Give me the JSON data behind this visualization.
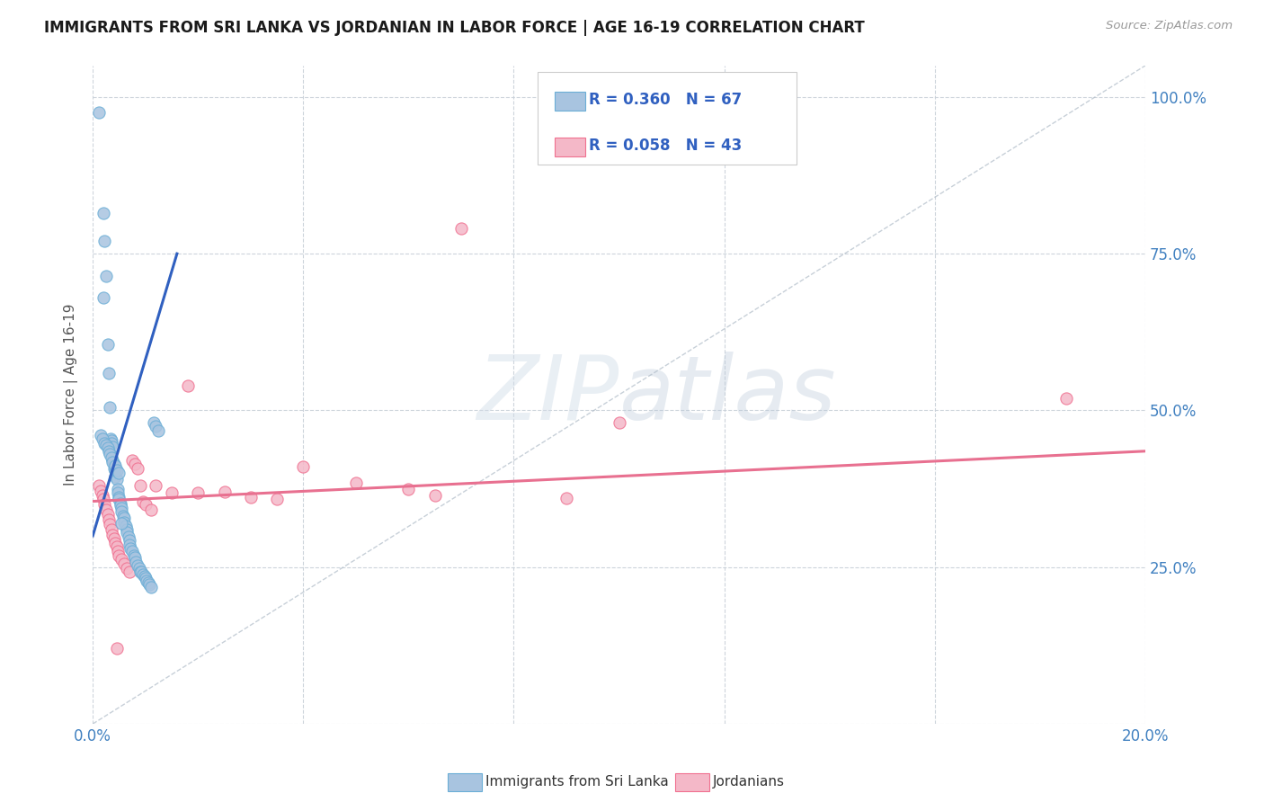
{
  "title": "IMMIGRANTS FROM SRI LANKA VS JORDANIAN IN LABOR FORCE | AGE 16-19 CORRELATION CHART",
  "source": "Source: ZipAtlas.com",
  "ylabel": "In Labor Force | Age 16-19",
  "xlim": [
    0.0,
    0.2
  ],
  "ylim": [
    0.0,
    1.05
  ],
  "xticks": [
    0.0,
    0.04,
    0.08,
    0.12,
    0.16,
    0.2
  ],
  "xticklabels": [
    "0.0%",
    "",
    "",
    "",
    "",
    "20.0%"
  ],
  "yticks": [
    0.0,
    0.25,
    0.5,
    0.75,
    1.0
  ],
  "right_yticklabels": [
    "",
    "25.0%",
    "50.0%",
    "75.0%",
    "100.0%"
  ],
  "watermark": "ZIPatlas",
  "legend_R1": "R = 0.360",
  "legend_N1": "N = 67",
  "legend_R2": "R = 0.058",
  "legend_N2": "N = 43",
  "sri_lanka_color": "#a8c4e0",
  "sri_lanka_edge": "#6baed6",
  "jordanian_color": "#f4b8c8",
  "jordanian_edge": "#f07090",
  "blue_line_color": "#3060c0",
  "pink_line_color": "#e87090",
  "diag_line_color": "#b0bcc8",
  "sri_lanka_x": [
    0.0012,
    0.002,
    0.002,
    0.0022,
    0.0025,
    0.0028,
    0.003,
    0.0032,
    0.0033,
    0.0035,
    0.0036,
    0.0038,
    0.0038,
    0.004,
    0.004,
    0.0042,
    0.0043,
    0.0045,
    0.0048,
    0.0048,
    0.005,
    0.005,
    0.0052,
    0.0052,
    0.0055,
    0.0055,
    0.0058,
    0.006,
    0.006,
    0.0062,
    0.0065,
    0.0065,
    0.0068,
    0.007,
    0.007,
    0.0072,
    0.0075,
    0.0078,
    0.008,
    0.0082,
    0.0085,
    0.0088,
    0.009,
    0.0092,
    0.0095,
    0.0098,
    0.01,
    0.0102,
    0.0105,
    0.0108,
    0.011,
    0.0115,
    0.012,
    0.0125,
    0.0015,
    0.0018,
    0.0022,
    0.0025,
    0.0028,
    0.003,
    0.0032,
    0.0035,
    0.0038,
    0.0042,
    0.0045,
    0.005,
    0.0055
  ],
  "sri_lanka_y": [
    0.975,
    0.815,
    0.68,
    0.77,
    0.715,
    0.605,
    0.56,
    0.505,
    0.455,
    0.452,
    0.448,
    0.442,
    0.42,
    0.415,
    0.408,
    0.405,
    0.395,
    0.39,
    0.375,
    0.368,
    0.362,
    0.358,
    0.352,
    0.348,
    0.345,
    0.338,
    0.332,
    0.328,
    0.322,
    0.315,
    0.31,
    0.305,
    0.298,
    0.292,
    0.285,
    0.28,
    0.275,
    0.268,
    0.265,
    0.258,
    0.252,
    0.248,
    0.242,
    0.242,
    0.238,
    0.235,
    0.232,
    0.228,
    0.225,
    0.222,
    0.218,
    0.48,
    0.475,
    0.468,
    0.46,
    0.455,
    0.448,
    0.445,
    0.44,
    0.435,
    0.43,
    0.425,
    0.418,
    0.412,
    0.405,
    0.4,
    0.32
  ],
  "jordanian_x": [
    0.0012,
    0.0015,
    0.0018,
    0.002,
    0.0022,
    0.0025,
    0.0028,
    0.003,
    0.0032,
    0.0035,
    0.0038,
    0.004,
    0.0042,
    0.0045,
    0.0048,
    0.005,
    0.0055,
    0.006,
    0.0065,
    0.007,
    0.0075,
    0.008,
    0.0085,
    0.009,
    0.0095,
    0.01,
    0.011,
    0.012,
    0.015,
    0.018,
    0.02,
    0.025,
    0.03,
    0.035,
    0.04,
    0.05,
    0.06,
    0.065,
    0.07,
    0.09,
    0.1,
    0.185,
    0.0045
  ],
  "jordanian_y": [
    0.38,
    0.372,
    0.365,
    0.358,
    0.35,
    0.342,
    0.335,
    0.325,
    0.318,
    0.31,
    0.302,
    0.295,
    0.288,
    0.282,
    0.275,
    0.268,
    0.262,
    0.255,
    0.248,
    0.242,
    0.42,
    0.415,
    0.408,
    0.38,
    0.355,
    0.35,
    0.342,
    0.38,
    0.368,
    0.54,
    0.368,
    0.37,
    0.362,
    0.358,
    0.41,
    0.385,
    0.375,
    0.365,
    0.79,
    0.36,
    0.48,
    0.52,
    0.12
  ],
  "sri_lanka_trendline_x": [
    0.0,
    0.016
  ],
  "sri_lanka_trendline_y": [
    0.3,
    0.75
  ],
  "jordanian_trendline_x": [
    0.0,
    0.2
  ],
  "jordanian_trendline_y": [
    0.355,
    0.435
  ],
  "diag_line_x": [
    0.0,
    0.2
  ],
  "diag_line_y": [
    0.0,
    1.05
  ],
  "background_color": "#ffffff",
  "grid_color": "#c8d0d8"
}
